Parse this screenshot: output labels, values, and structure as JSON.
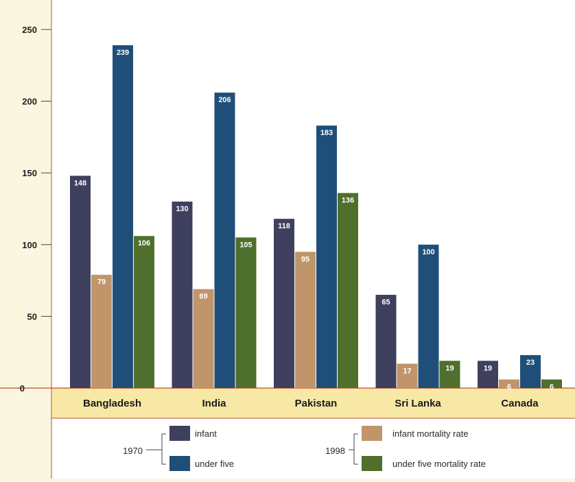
{
  "chart_data": {
    "type": "bar",
    "categories": [
      "Bangladesh",
      "India",
      "Pakistan",
      "Sri Lanka",
      "Canada"
    ],
    "series": [
      {
        "name": "infant",
        "group": "1970",
        "color": "#3f3f5e",
        "values": [
          148,
          130,
          118,
          65,
          19
        ]
      },
      {
        "name": "infant mortality rate",
        "group": "1998",
        "color": "#c0956a",
        "values": [
          79,
          69,
          95,
          17,
          6
        ]
      },
      {
        "name": "under five",
        "group": "1970",
        "color": "#1f4f78",
        "values": [
          239,
          206,
          183,
          100,
          23
        ]
      },
      {
        "name": "under five mortality rate",
        "group": "1998",
        "color": "#4f6f2c",
        "values": [
          106,
          105,
          136,
          19,
          6
        ]
      }
    ],
    "y_ticks": [
      "250",
      "200",
      "150",
      "100",
      "50",
      "0"
    ],
    "ylim": [
      0,
      260
    ],
    "grid": false,
    "legend": {
      "placement": "bottom",
      "groups": [
        {
          "label": "1970",
          "items": [
            "infant",
            "under five"
          ]
        },
        {
          "label": "1998",
          "items": [
            "infant mortality rate",
            "under five mortality rate"
          ]
        }
      ]
    },
    "colors": {
      "background": "#fbf6df",
      "frame": "#c8472e",
      "zero_tick": "#b0301c",
      "category_band": "#f8e8a6"
    }
  }
}
